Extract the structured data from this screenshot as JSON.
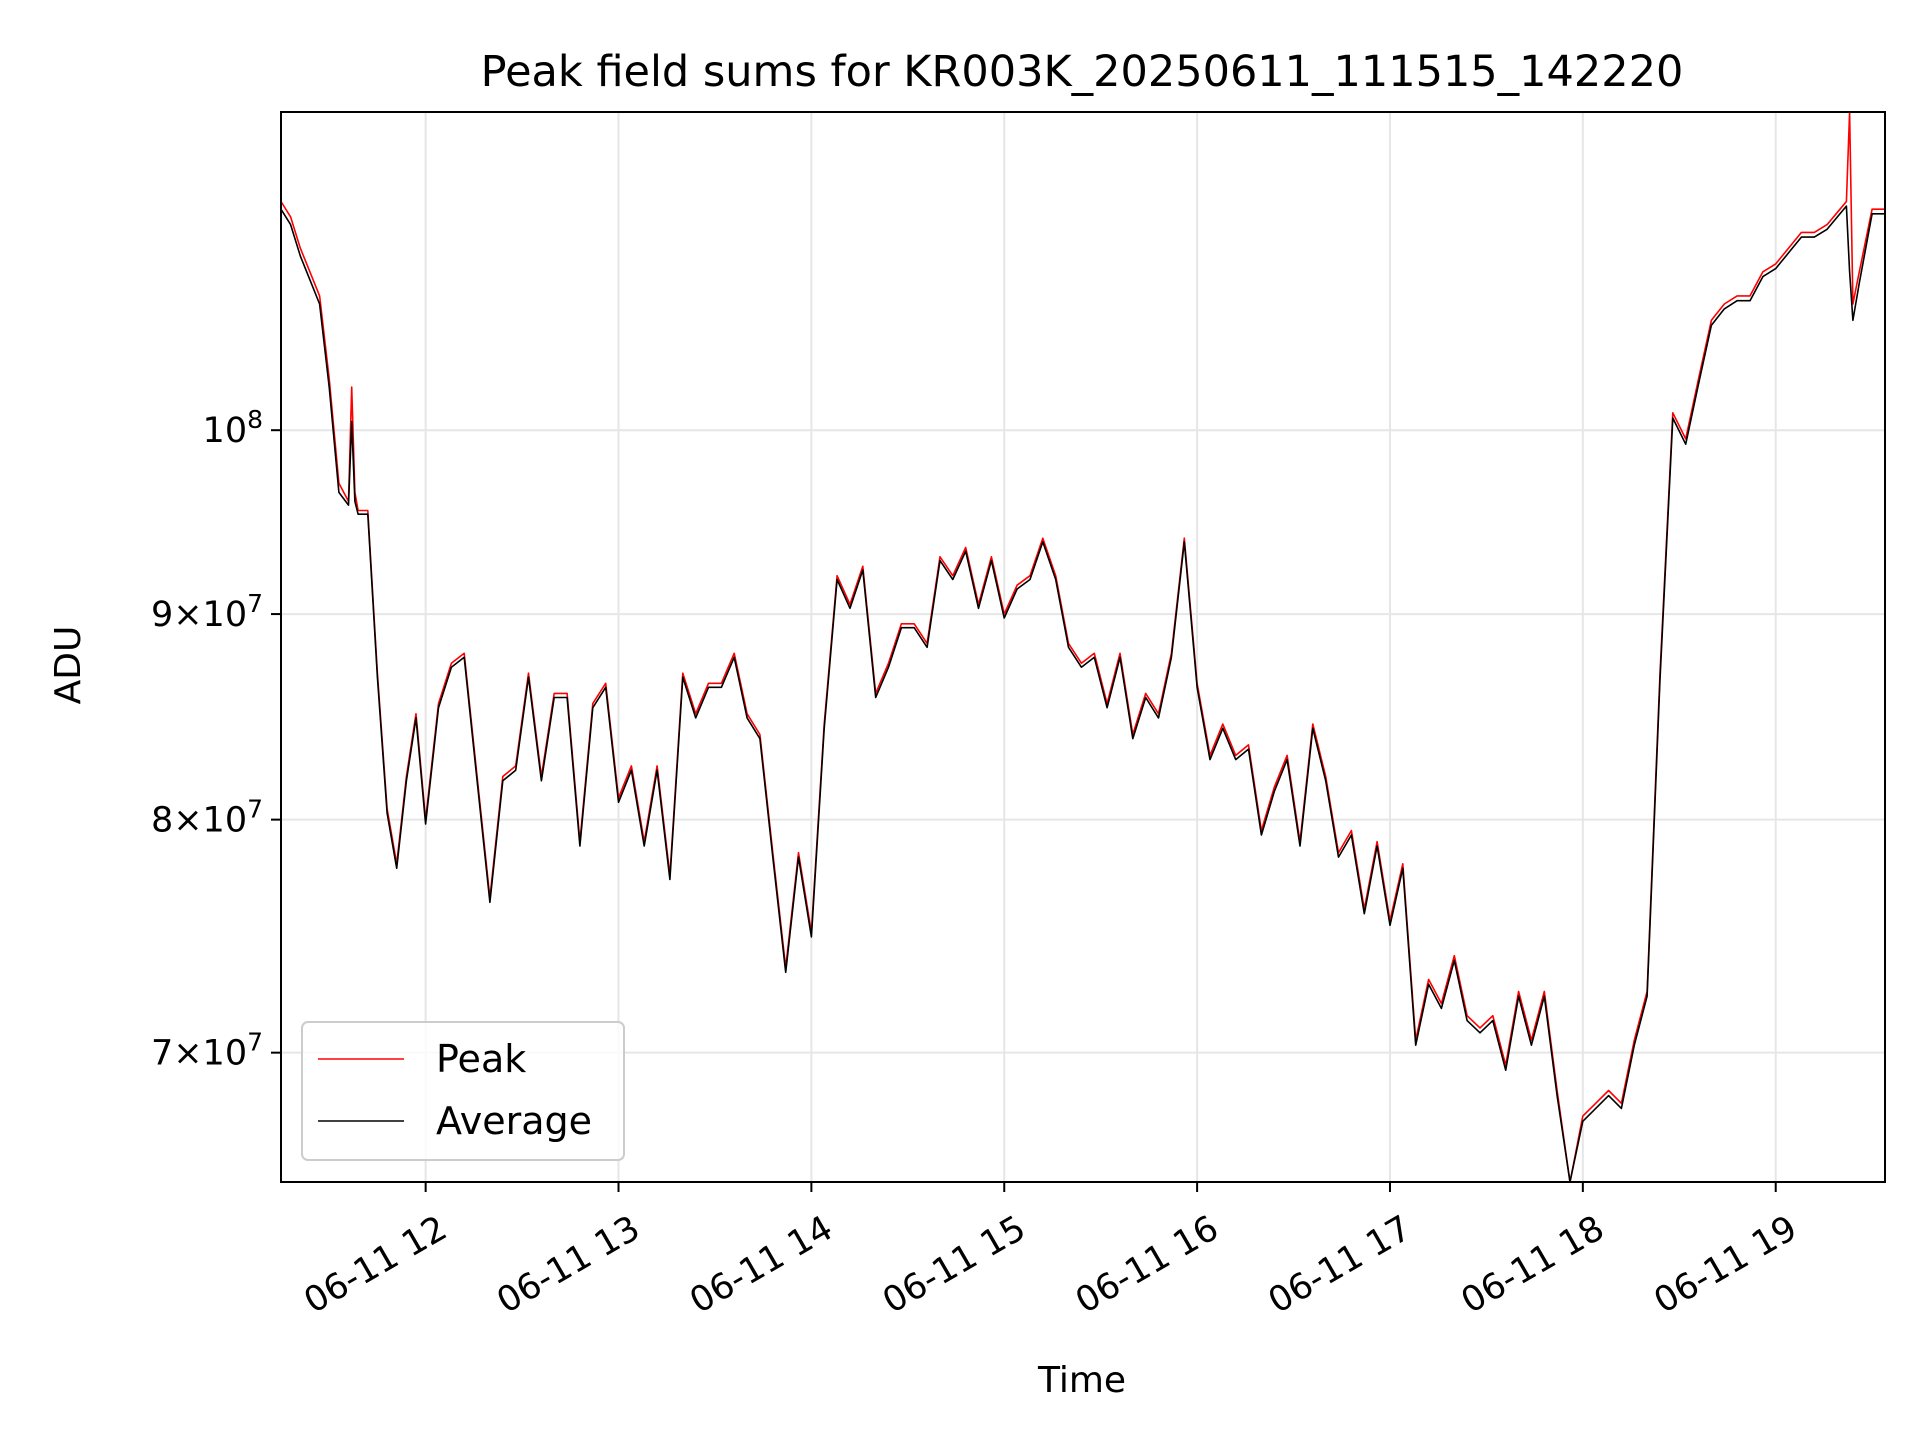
{
  "chart_data": {
    "type": "line",
    "title": "Peak field sums for KR003K_20250611_111515_142220",
    "xlabel": "Time",
    "ylabel": "ADU",
    "y_scale": "log",
    "xlim": [
      "2025-06-11 11:15",
      "2025-06-11 19:34"
    ],
    "ylim": [
      65000000,
      120000000
    ],
    "grid": true,
    "legend": "lower-left",
    "x_ticks": [
      {
        "t": "2025-06-11 12:00",
        "label": "06-11 12"
      },
      {
        "t": "2025-06-11 13:00",
        "label": "06-11 13"
      },
      {
        "t": "2025-06-11 14:00",
        "label": "06-11 14"
      },
      {
        "t": "2025-06-11 15:00",
        "label": "06-11 15"
      },
      {
        "t": "2025-06-11 16:00",
        "label": "06-11 16"
      },
      {
        "t": "2025-06-11 17:00",
        "label": "06-11 17"
      },
      {
        "t": "2025-06-11 18:00",
        "label": "06-11 18"
      },
      {
        "t": "2025-06-11 19:00",
        "label": "06-11 19"
      }
    ],
    "y_ticks": [
      {
        "v": 70000000,
        "mant": "7",
        "exp": "7"
      },
      {
        "v": 80000000,
        "mant": "8",
        "exp": "7"
      },
      {
        "v": 90000000,
        "mant": "9",
        "exp": "7"
      },
      {
        "v": 100000000,
        "mant": "",
        "exp": "8"
      }
    ],
    "colors": {
      "peak": "#ff0000",
      "average": "#000000",
      "grid": "#e6e6e6"
    },
    "series": [
      {
        "name": "Peak",
        "x": [
          "11:15",
          "11:18",
          "11:21",
          "11:24",
          "11:27",
          "11:30",
          "11:33",
          "11:36",
          "11:37",
          "11:38",
          "11:39",
          "11:42",
          "11:45",
          "11:48",
          "11:51",
          "11:54",
          "11:57",
          "12:00",
          "12:04",
          "12:08",
          "12:12",
          "12:16",
          "12:20",
          "12:24",
          "12:28",
          "12:32",
          "12:36",
          "12:40",
          "12:44",
          "12:48",
          "12:52",
          "12:56",
          "13:00",
          "13:04",
          "13:08",
          "13:12",
          "13:16",
          "13:20",
          "13:24",
          "13:28",
          "13:32",
          "13:36",
          "13:40",
          "13:44",
          "13:48",
          "13:52",
          "13:56",
          "14:00",
          "14:04",
          "14:08",
          "14:12",
          "14:16",
          "14:20",
          "14:24",
          "14:28",
          "14:32",
          "14:36",
          "14:40",
          "14:44",
          "14:48",
          "14:52",
          "14:56",
          "15:00",
          "15:04",
          "15:08",
          "15:12",
          "15:16",
          "15:20",
          "15:24",
          "15:28",
          "15:32",
          "15:36",
          "15:40",
          "15:44",
          "15:48",
          "15:52",
          "15:56",
          "16:00",
          "16:04",
          "16:08",
          "16:12",
          "16:16",
          "16:20",
          "16:24",
          "16:28",
          "16:32",
          "16:36",
          "16:40",
          "16:44",
          "16:48",
          "16:52",
          "16:56",
          "17:00",
          "17:04",
          "17:08",
          "17:12",
          "17:16",
          "17:20",
          "17:24",
          "17:28",
          "17:32",
          "17:36",
          "17:40",
          "17:44",
          "17:48",
          "17:52",
          "17:56",
          "18:00",
          "18:04",
          "18:08",
          "18:12",
          "18:16",
          "18:20",
          "18:24",
          "18:28",
          "18:32",
          "18:36",
          "18:40",
          "18:44",
          "18:48",
          "18:52",
          "18:56",
          "19:00",
          "19:04",
          "19:08",
          "19:12",
          "19:16",
          "19:20",
          "19:22",
          "19:23",
          "19:24",
          "19:26",
          "19:30",
          "19:34"
        ],
        "y": [
          114000000,
          113000000,
          111000000,
          109500000,
          108000000,
          103000000,
          97000000,
          96000000,
          102500000,
          96500000,
          95500000,
          95500000,
          87000000,
          80500000,
          78000000,
          82000000,
          85000000,
          80000000,
          85500000,
          87500000,
          88000000,
          82000000,
          76500000,
          82000000,
          82500000,
          87000000,
          82000000,
          86000000,
          86000000,
          79000000,
          85500000,
          86500000,
          81000000,
          82500000,
          79000000,
          82500000,
          77500000,
          87000000,
          85000000,
          86500000,
          86500000,
          88000000,
          85000000,
          84000000,
          78500000,
          73500000,
          78500000,
          75000000,
          84500000,
          92000000,
          90500000,
          92500000,
          86000000,
          87500000,
          89500000,
          89500000,
          88500000,
          93000000,
          92000000,
          93500000,
          90500000,
          93000000,
          90000000,
          91500000,
          92000000,
          94000000,
          92000000,
          88500000,
          87500000,
          88000000,
          85500000,
          88000000,
          84000000,
          86000000,
          85000000,
          88000000,
          94000000,
          86500000,
          83000000,
          84500000,
          83000000,
          83500000,
          79500000,
          81500000,
          83000000,
          79000000,
          84500000,
          82000000,
          78500000,
          79500000,
          76000000,
          79000000,
          75500000,
          78000000,
          70500000,
          73000000,
          72000000,
          74000000,
          71500000,
          71000000,
          71500000,
          69500000,
          72500000,
          70500000,
          72500000,
          68500000,
          65000000,
          67500000,
          68000000,
          68500000,
          68000000,
          70500000,
          72500000,
          87000000,
          101000000,
          99500000,
          103000000,
          106500000,
          107500000,
          108000000,
          108000000,
          109500000,
          110000000,
          111000000,
          112000000,
          112000000,
          112500000,
          113500000,
          114000000,
          120000000,
          107500000,
          109500000,
          113500000,
          113500000
        ]
      },
      {
        "name": "Average",
        "x": [
          "11:15",
          "11:18",
          "11:21",
          "11:24",
          "11:27",
          "11:30",
          "11:33",
          "11:36",
          "11:37",
          "11:38",
          "11:39",
          "11:42",
          "11:45",
          "11:48",
          "11:51",
          "11:54",
          "11:57",
          "12:00",
          "12:04",
          "12:08",
          "12:12",
          "12:16",
          "12:20",
          "12:24",
          "12:28",
          "12:32",
          "12:36",
          "12:40",
          "12:44",
          "12:48",
          "12:52",
          "12:56",
          "13:00",
          "13:04",
          "13:08",
          "13:12",
          "13:16",
          "13:20",
          "13:24",
          "13:28",
          "13:32",
          "13:36",
          "13:40",
          "13:44",
          "13:48",
          "13:52",
          "13:56",
          "14:00",
          "14:04",
          "14:08",
          "14:12",
          "14:16",
          "14:20",
          "14:24",
          "14:28",
          "14:32",
          "14:36",
          "14:40",
          "14:44",
          "14:48",
          "14:52",
          "14:56",
          "15:00",
          "15:04",
          "15:08",
          "15:12",
          "15:16",
          "15:20",
          "15:24",
          "15:28",
          "15:32",
          "15:36",
          "15:40",
          "15:44",
          "15:48",
          "15:52",
          "15:56",
          "16:00",
          "16:04",
          "16:08",
          "16:12",
          "16:16",
          "16:20",
          "16:24",
          "16:28",
          "16:32",
          "16:36",
          "16:40",
          "16:44",
          "16:48",
          "16:52",
          "16:56",
          "17:00",
          "17:04",
          "17:08",
          "17:12",
          "17:16",
          "17:20",
          "17:24",
          "17:28",
          "17:32",
          "17:36",
          "17:40",
          "17:44",
          "17:48",
          "17:52",
          "17:56",
          "18:00",
          "18:04",
          "18:08",
          "18:12",
          "18:16",
          "18:20",
          "18:24",
          "18:28",
          "18:32",
          "18:36",
          "18:40",
          "18:44",
          "18:48",
          "18:52",
          "18:56",
          "19:00",
          "19:04",
          "19:08",
          "19:12",
          "19:16",
          "19:20",
          "19:22",
          "19:23",
          "19:24",
          "19:26",
          "19:30",
          "19:34"
        ],
        "y": [
          113500000,
          112500000,
          110500000,
          109000000,
          107500000,
          102500000,
          96500000,
          95800000,
          100500000,
          96000000,
          95300000,
          95300000,
          86800000,
          80300000,
          77800000,
          81800000,
          84800000,
          79800000,
          85300000,
          87300000,
          87800000,
          81800000,
          76300000,
          81800000,
          82300000,
          86800000,
          81800000,
          85800000,
          85800000,
          78800000,
          85300000,
          86300000,
          80800000,
          82300000,
          78800000,
          82300000,
          77300000,
          86800000,
          84800000,
          86300000,
          86300000,
          87800000,
          84800000,
          83800000,
          78300000,
          73300000,
          78300000,
          74800000,
          84300000,
          91800000,
          90300000,
          92300000,
          85800000,
          87300000,
          89300000,
          89300000,
          88300000,
          92800000,
          91800000,
          93300000,
          90300000,
          92800000,
          89800000,
          91300000,
          91800000,
          93800000,
          91800000,
          88300000,
          87300000,
          87800000,
          85300000,
          87800000,
          83800000,
          85800000,
          84800000,
          87800000,
          93800000,
          86300000,
          82800000,
          84300000,
          82800000,
          83300000,
          79300000,
          81300000,
          82800000,
          78800000,
          84300000,
          81800000,
          78300000,
          79300000,
          75800000,
          78800000,
          75300000,
          77800000,
          70300000,
          72800000,
          71800000,
          73800000,
          71300000,
          70800000,
          71300000,
          69300000,
          72300000,
          70300000,
          72300000,
          68300000,
          64800000,
          67300000,
          67800000,
          68300000,
          67800000,
          70300000,
          72300000,
          86700000,
          100700000,
          99200000,
          102700000,
          106200000,
          107200000,
          107700000,
          107700000,
          109200000,
          109700000,
          110700000,
          111700000,
          111700000,
          112200000,
          113200000,
          113700000,
          109500000,
          106500000,
          108800000,
          113200000,
          113200000
        ]
      }
    ]
  }
}
